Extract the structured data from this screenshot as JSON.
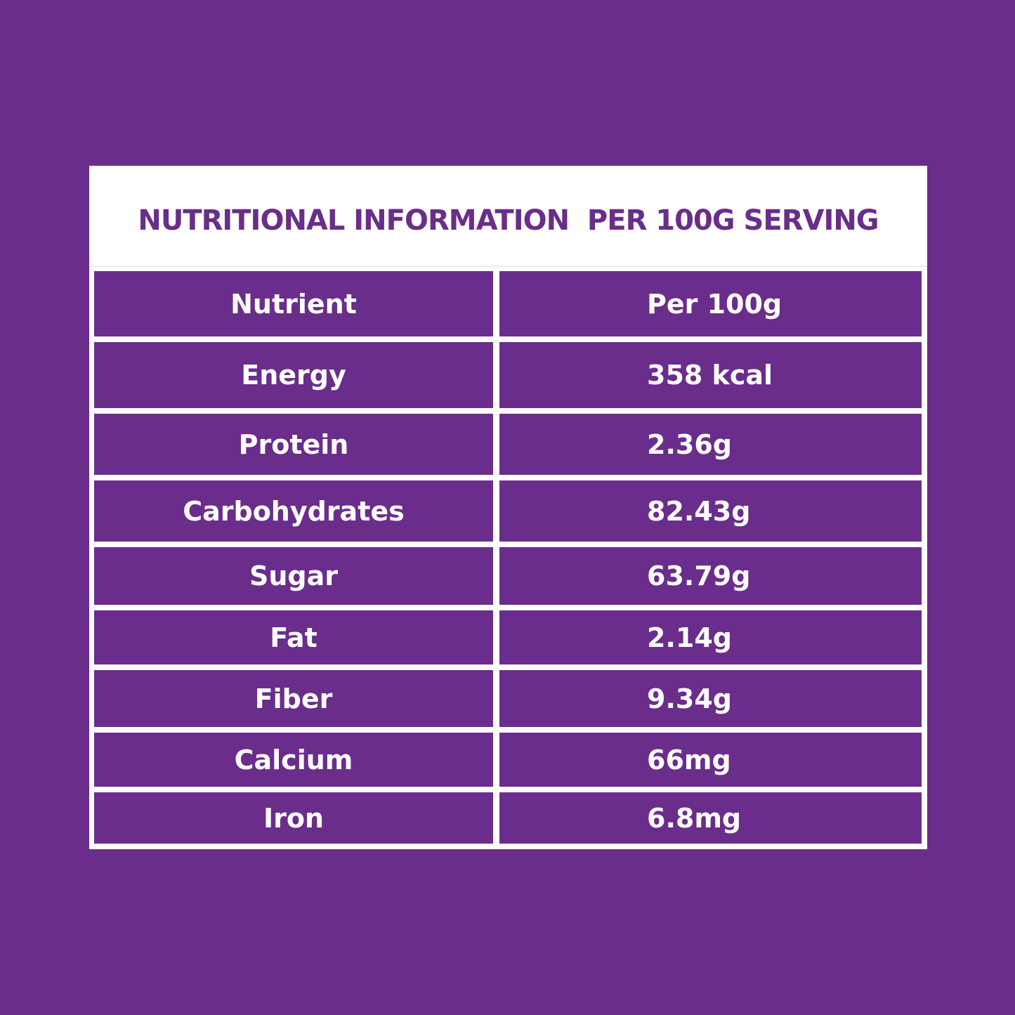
{
  "title": "NUTRITIONAL INFORMATION  PER 100G SERVING",
  "table": {
    "headers": [
      "Nutrient",
      "Per 100g"
    ],
    "rows": [
      {
        "nutrient": "Energy",
        "value": "358 kcal"
      },
      {
        "nutrient": "Protein",
        "value": "2.36g"
      },
      {
        "nutrient": "Carbohydrates",
        "value": "82.43g"
      },
      {
        "nutrient": "Sugar",
        "value": "63.79g"
      },
      {
        "nutrient": "Fat",
        "value": "2.14g"
      },
      {
        "nutrient": "Fiber",
        "value": "9.34g"
      },
      {
        "nutrient": "Calcium",
        "value": "66mg"
      },
      {
        "nutrient": "Iron",
        "value": "6.8mg"
      }
    ]
  },
  "colors": {
    "background": "#6a2d8b",
    "card": "#ffffff",
    "title_text": "#6a2d8b",
    "cell_text": "#ffffff"
  }
}
